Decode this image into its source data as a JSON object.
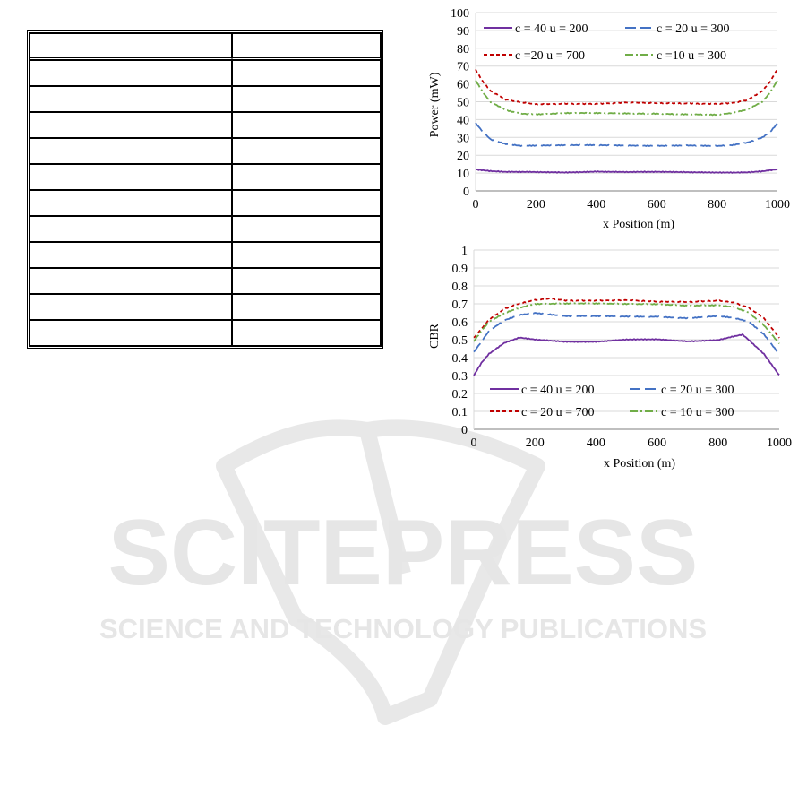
{
  "watermark": {
    "line1": "SCITEPRESS",
    "line2": "SCIENCE AND TECHNOLOGY PUBLICATIONS"
  },
  "table": {
    "rows": 12,
    "cols": 2,
    "cells": []
  },
  "chart_data": [
    {
      "type": "line",
      "xlabel": "x Position (m)",
      "ylabel": "Power (mW)",
      "xlim": [
        0,
        1000
      ],
      "ylim": [
        0,
        100
      ],
      "xticks": [
        0,
        200,
        400,
        600,
        800,
        1000
      ],
      "yticks": [
        0,
        10,
        20,
        30,
        40,
        50,
        60,
        70,
        80,
        90,
        100
      ],
      "grid": true,
      "legend_position": "top",
      "series": [
        {
          "name": "c = 40  u = 200",
          "color": "#7030a0",
          "dash": "solid",
          "x": [
            0,
            50,
            100,
            150,
            200,
            300,
            400,
            500,
            600,
            700,
            800,
            850,
            900,
            950,
            1000
          ],
          "y": [
            12,
            11,
            10.5,
            10.5,
            10.5,
            10.5,
            11,
            10.5,
            10.5,
            10.5,
            10.5,
            10.5,
            10.5,
            11,
            12
          ]
        },
        {
          "name": "c = 20  u = 300",
          "color": "#4472c4",
          "dash": "long-dash",
          "x": [
            0,
            25,
            50,
            100,
            150,
            200,
            300,
            400,
            500,
            600,
            700,
            800,
            850,
            900,
            950,
            975,
            1000
          ],
          "y": [
            38,
            33,
            29,
            26.5,
            25.5,
            25.5,
            25.5,
            25.5,
            25.5,
            25.5,
            25.5,
            25,
            25.5,
            27,
            30,
            33,
            38
          ]
        },
        {
          "name": "c =20  u = 700",
          "color": "#c00000",
          "dash": "short-dash",
          "x": [
            0,
            25,
            50,
            100,
            150,
            200,
            300,
            400,
            500,
            600,
            700,
            800,
            850,
            900,
            950,
            975,
            1000
          ],
          "y": [
            68,
            61,
            56,
            51,
            49.5,
            48.5,
            49,
            49,
            49.5,
            49,
            49,
            49,
            49.5,
            51,
            56,
            61,
            68
          ]
        },
        {
          "name": "c =10  u = 300",
          "color": "#70ad47",
          "dash": "dash-dot",
          "x": [
            0,
            25,
            50,
            100,
            150,
            200,
            300,
            400,
            500,
            600,
            700,
            800,
            850,
            900,
            950,
            975,
            1000
          ],
          "y": [
            62,
            55,
            50,
            45.5,
            43.5,
            43,
            43.5,
            43.5,
            43.5,
            43.5,
            43,
            42.5,
            43.5,
            45.5,
            50,
            55,
            62
          ]
        }
      ]
    },
    {
      "type": "line",
      "xlabel": "x Position (m)",
      "ylabel": "CBR",
      "xlim": [
        0,
        1000
      ],
      "ylim": [
        0,
        1
      ],
      "xticks": [
        0,
        200,
        400,
        600,
        800,
        1000
      ],
      "yticks": [
        0,
        0.1,
        0.2,
        0.3,
        0.4,
        0.5,
        0.6,
        0.7,
        0.8,
        0.9,
        1
      ],
      "grid": true,
      "legend_position": "bottom",
      "series": [
        {
          "name": "c = 40  u = 200",
          "color": "#7030a0",
          "dash": "solid",
          "x": [
            0,
            25,
            50,
            100,
            150,
            200,
            300,
            400,
            500,
            600,
            700,
            800,
            850,
            880,
            900,
            950,
            1000
          ],
          "y": [
            0.3,
            0.37,
            0.42,
            0.48,
            0.51,
            0.5,
            0.49,
            0.49,
            0.5,
            0.5,
            0.49,
            0.5,
            0.52,
            0.53,
            0.5,
            0.42,
            0.3
          ]
        },
        {
          "name": "c = 20  u = 300",
          "color": "#4472c4",
          "dash": "long-dash",
          "x": [
            0,
            25,
            50,
            100,
            150,
            200,
            300,
            400,
            500,
            600,
            700,
            800,
            850,
            900,
            950,
            1000
          ],
          "y": [
            0.43,
            0.49,
            0.55,
            0.61,
            0.64,
            0.65,
            0.63,
            0.63,
            0.63,
            0.63,
            0.62,
            0.63,
            0.62,
            0.6,
            0.53,
            0.42
          ]
        },
        {
          "name": "c = 20  u = 700",
          "color": "#c00000",
          "dash": "short-dash",
          "x": [
            0,
            25,
            50,
            100,
            150,
            200,
            250,
            300,
            400,
            500,
            600,
            700,
            800,
            850,
            900,
            950,
            1000
          ],
          "y": [
            0.51,
            0.56,
            0.61,
            0.67,
            0.7,
            0.72,
            0.73,
            0.72,
            0.72,
            0.72,
            0.71,
            0.71,
            0.72,
            0.71,
            0.68,
            0.62,
            0.51
          ]
        },
        {
          "name": "c = 10  u = 300",
          "color": "#70ad47",
          "dash": "dash-dot",
          "x": [
            0,
            25,
            50,
            100,
            150,
            200,
            300,
            400,
            500,
            600,
            700,
            800,
            850,
            900,
            950,
            1000
          ],
          "y": [
            0.49,
            0.55,
            0.6,
            0.65,
            0.68,
            0.7,
            0.7,
            0.7,
            0.7,
            0.7,
            0.69,
            0.69,
            0.68,
            0.65,
            0.58,
            0.48
          ]
        }
      ]
    }
  ]
}
